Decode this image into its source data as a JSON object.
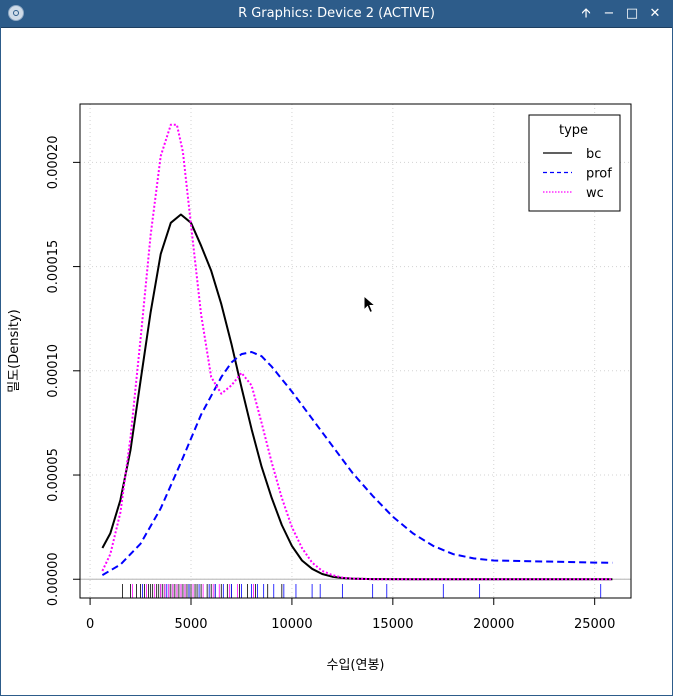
{
  "window": {
    "title": "R Graphics: Device 2 (ACTIVE)",
    "buttons": {
      "keep_above": "🡩",
      "minimize": "−",
      "maximize": "□",
      "close": "✕"
    }
  },
  "colors": {
    "titlebar": "#2d5c8a",
    "bc": "#000000",
    "prof": "#0000ff",
    "wc": "#ff00ff",
    "grid": "#d3d3d3"
  },
  "chart_data": {
    "type": "line",
    "xlabel": "수입(연봉)",
    "ylabel": "밀도(Density)",
    "xlim": [
      -500,
      26800
    ],
    "ylim": [
      -9e-06,
      0.000228
    ],
    "xticks": [
      0,
      5000,
      10000,
      15000,
      20000,
      25000
    ],
    "yticks": [
      0,
      5e-05,
      0.0001,
      0.00015,
      0.0002
    ],
    "xtick_labels": [
      "0",
      "5000",
      "10000",
      "15000",
      "20000",
      "25000"
    ],
    "ytick_labels": [
      "0.00000",
      "0.00005",
      "0.00010",
      "0.00015",
      "0.00020"
    ],
    "grid": true,
    "legend": {
      "title": "type",
      "position": "top-right",
      "entries": [
        {
          "name": "bc",
          "color": "#000000",
          "dash": "solid"
        },
        {
          "name": "prof",
          "color": "#0000ff",
          "dash": "dashed"
        },
        {
          "name": "wc",
          "color": "#ff00ff",
          "dash": "dotted"
        }
      ]
    },
    "series": [
      {
        "name": "bc",
        "color": "#000000",
        "dash": "solid",
        "x": [
          611,
          1000,
          1500,
          2000,
          2500,
          3000,
          3500,
          4000,
          4500,
          5000,
          5500,
          6000,
          6500,
          7000,
          7500,
          8000,
          8500,
          9000,
          9500,
          10000,
          10500,
          11000,
          11500,
          12000,
          12500,
          13000,
          14000,
          16000,
          20000,
          25879
        ],
        "y": [
          1.5e-05,
          2.2e-05,
          3.8e-05,
          6.2e-05,
          9.5e-05,
          0.000128,
          0.000156,
          0.000171,
          0.000175,
          0.000171,
          0.00016,
          0.000148,
          0.000132,
          0.000113,
          9.2e-05,
          7.2e-05,
          5.4e-05,
          3.9e-05,
          2.6e-05,
          1.6e-05,
          9e-06,
          5e-06,
          2.5e-06,
          1.2e-06,
          6e-07,
          3e-07,
          5e-08,
          0.0,
          0.0,
          0.0
        ]
      },
      {
        "name": "prof",
        "color": "#0000ff",
        "dash": "dashed",
        "x": [
          611,
          1500,
          2500,
          3500,
          4500,
          5500,
          6500,
          7000,
          7500,
          8000,
          8500,
          9000,
          10000,
          11000,
          12000,
          13000,
          14000,
          15000,
          16000,
          17000,
          18000,
          19000,
          20000,
          21000,
          22000,
          23000,
          24000,
          25000,
          25879
        ],
        "y": [
          2e-06,
          7e-06,
          1.7e-05,
          3.4e-05,
          5.6e-05,
          7.9e-05,
          9.7e-05,
          0.000104,
          0.000108,
          0.000109,
          0.000107,
          0.000102,
          9e-05,
          7.7e-05,
          6.4e-05,
          5.1e-05,
          4e-05,
          3e-05,
          2.2e-05,
          1.6e-05,
          1.2e-05,
          1e-05,
          9e-06,
          8.8e-06,
          8.6e-06,
          8.4e-06,
          8.2e-06,
          8e-06,
          7.9e-06
        ]
      },
      {
        "name": "wc",
        "color": "#ff00ff",
        "dash": "dotted",
        "x": [
          611,
          1000,
          1500,
          2000,
          2500,
          3000,
          3500,
          4000,
          4300,
          4600,
          5000,
          5500,
          6000,
          6500,
          7000,
          7500,
          8000,
          8500,
          9000,
          9500,
          10000,
          10500,
          11000,
          11500,
          12000,
          12500,
          13000,
          14000,
          16000,
          20000,
          25879
        ],
        "y": [
          4e-06,
          1.2e-05,
          3.2e-05,
          6.8e-05,
          0.000115,
          0.000165,
          0.000203,
          0.000218,
          0.000218,
          0.000205,
          0.00017,
          0.000127,
          9.7e-05,
          8.9e-05,
          9.3e-05,
          9.9e-05,
          9.3e-05,
          7.5e-05,
          5.6e-05,
          3.9e-05,
          2.5e-05,
          1.5e-05,
          8e-06,
          4e-06,
          2e-06,
          8e-07,
          3e-07,
          0.0,
          0.0,
          0.0,
          0.0
        ]
      }
    ],
    "rug": {
      "bc": [
        1600,
        2000,
        2300,
        2500,
        2700,
        2900,
        3000,
        3100,
        3300,
        3400,
        3500,
        3600,
        3700,
        3900,
        4000,
        4100,
        4200,
        4300,
        4400,
        4500,
        4600,
        4700,
        4800,
        4900,
        5000,
        5200,
        5300,
        5500,
        5800,
        6000,
        6200,
        6500,
        6800,
        7000,
        7400,
        7800,
        8200,
        8800,
        9500
      ],
      "prof": [
        2600,
        3800,
        4900,
        5400,
        5900,
        6200,
        6600,
        7000,
        7500,
        8000,
        8300,
        8600,
        9100,
        9600,
        10200,
        11000,
        11400,
        12500,
        14000,
        14700,
        17500,
        19300,
        25300
      ],
      "wc": [
        2100,
        2800,
        3200,
        3500,
        3700,
        3900,
        4100,
        4300,
        4500,
        4700,
        5100,
        5600,
        6100,
        6400,
        6900,
        7300,
        8100
      ]
    }
  }
}
